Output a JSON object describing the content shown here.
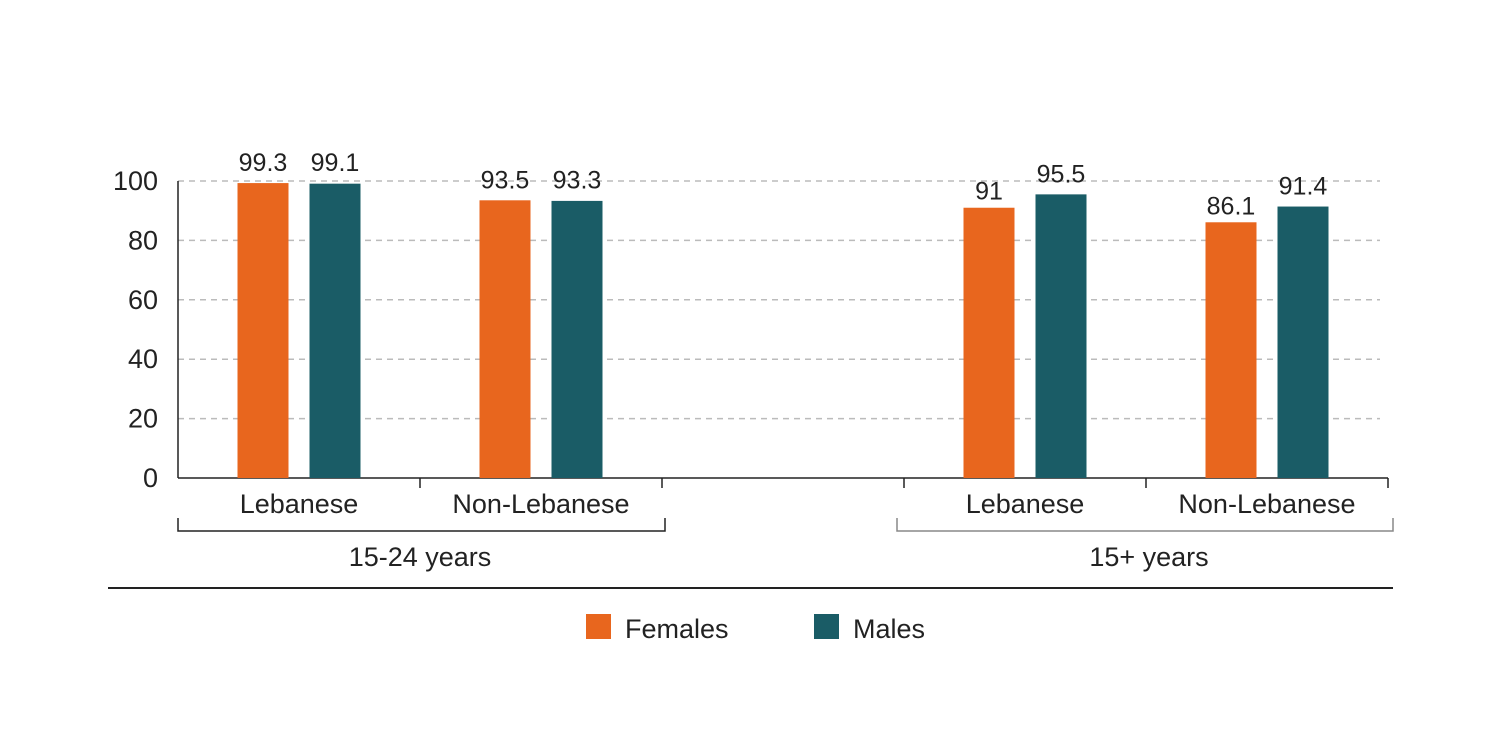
{
  "chart_data": {
    "type": "bar",
    "ylim": [
      0,
      100
    ],
    "yticks": [
      0,
      20,
      40,
      60,
      80,
      100
    ],
    "grid": true,
    "legend_position": "bottom",
    "groups": [
      {
        "label": "15-24 years",
        "categories": [
          "Lebanese",
          "Non-Lebanese"
        ]
      },
      {
        "label": "15+ years",
        "categories": [
          "Lebanese",
          "Non-Lebanese"
        ]
      }
    ],
    "series": [
      {
        "name": "Females",
        "color": "#E8661E",
        "values": [
          99.3,
          93.5,
          91,
          86.1
        ],
        "labels": [
          "99.3",
          "93.5",
          "91",
          "86.1"
        ]
      },
      {
        "name": "Males",
        "color": "#1A5C66",
        "values": [
          99.1,
          93.3,
          95.5,
          91.4
        ],
        "labels": [
          "99.1",
          "93.3",
          "95.5",
          "91.4"
        ]
      }
    ]
  }
}
